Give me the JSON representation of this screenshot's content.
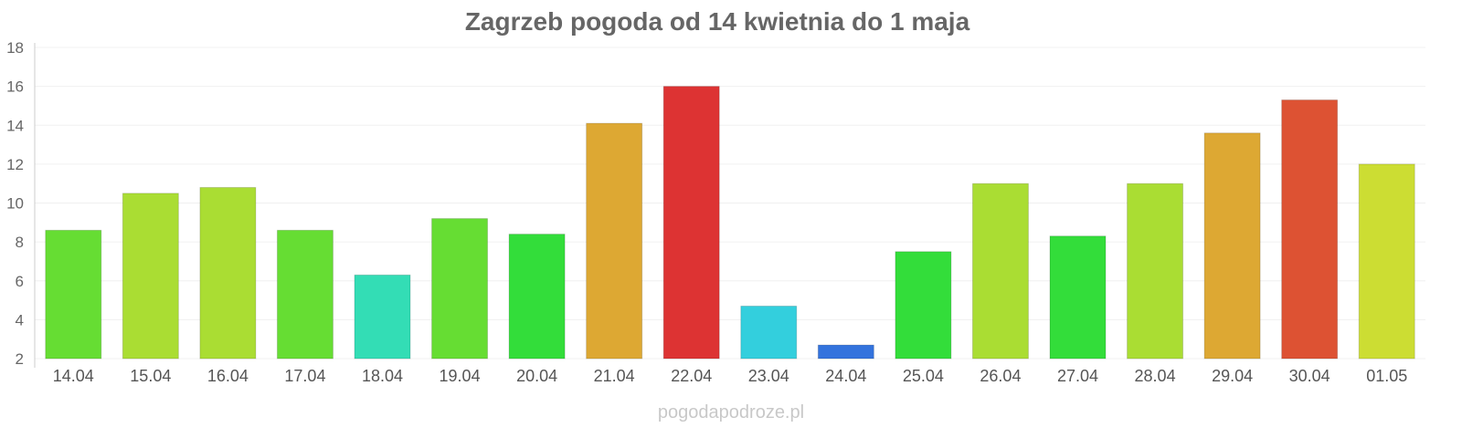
{
  "chart_data": {
    "type": "bar",
    "title": "Zagrzeb pogoda od 14 kwietnia do 1 maja",
    "xlabel": "",
    "ylabel": "",
    "ylim": [
      2,
      18
    ],
    "yticks": [
      2,
      4,
      6,
      8,
      10,
      12,
      14,
      16,
      18
    ],
    "grid": true,
    "categories": [
      "14.04",
      "15.04",
      "16.04",
      "17.04",
      "18.04",
      "19.04",
      "20.04",
      "21.04",
      "22.04",
      "23.04",
      "24.04",
      "25.04",
      "26.04",
      "27.04",
      "28.04",
      "29.04",
      "30.04",
      "01.05"
    ],
    "values": [
      8.6,
      10.5,
      10.8,
      8.6,
      6.3,
      9.2,
      8.4,
      14.1,
      16.0,
      4.7,
      2.7,
      7.5,
      11.0,
      8.3,
      11.0,
      13.6,
      15.3,
      12.0
    ],
    "colors": [
      "#66dd33",
      "#aadd33",
      "#aadd33",
      "#66dd33",
      "#33ddb5",
      "#66dd33",
      "#33dd3a",
      "#dda833",
      "#dd3333",
      "#33cfdd",
      "#3373dd",
      "#33dd3a",
      "#aadd33",
      "#33dd3a",
      "#aadd33",
      "#dda833",
      "#dd5233",
      "#ccdd33"
    ]
  },
  "watermark": "pogodapodroze.pl"
}
